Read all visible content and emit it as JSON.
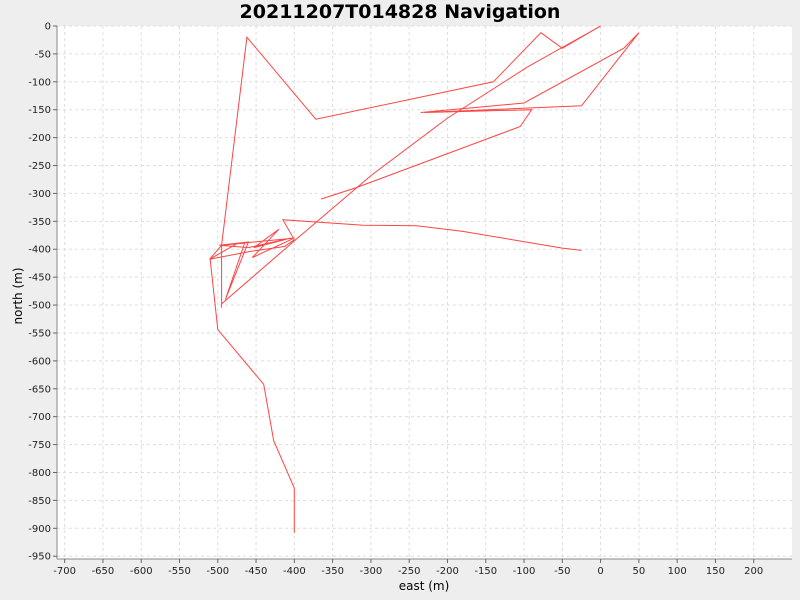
{
  "chart_data": {
    "type": "line",
    "title": "20211207T014828 Navigation",
    "xlabel": "east (m)",
    "ylabel": "north (m)",
    "xlim": [
      -710,
      250
    ],
    "ylim": [
      -955,
      0
    ],
    "xticks": [
      -700,
      -650,
      -600,
      -550,
      -500,
      -450,
      -400,
      -350,
      -300,
      -250,
      -200,
      -150,
      -100,
      -50,
      0,
      50,
      100,
      150,
      200
    ],
    "yticks": [
      0,
      -50,
      -100,
      -150,
      -200,
      -250,
      -300,
      -350,
      -400,
      -450,
      -500,
      -550,
      -600,
      -650,
      -700,
      -750,
      -800,
      -850,
      -900,
      -950
    ],
    "grid": true,
    "colors": {
      "series": "#ff4444",
      "grid": "#dddddd",
      "plot_bg": "#ffffff",
      "page_bg": "#eeeeee"
    },
    "series": [
      {
        "points": [
          [
            -400,
            -908
          ],
          [
            -400,
            -828
          ],
          [
            -427,
            -743
          ],
          [
            -440,
            -642
          ],
          [
            -500,
            -544
          ],
          [
            -510,
            -417
          ],
          [
            -495,
            -393
          ],
          [
            -465,
            -389
          ],
          [
            -490,
            -490
          ],
          [
            -460,
            -387
          ],
          [
            -498,
            -393
          ],
          [
            -460,
            -397
          ],
          [
            -405,
            -380
          ],
          [
            -453,
            -397
          ],
          [
            -420,
            -364
          ],
          [
            -455,
            -415
          ],
          [
            -400,
            -380
          ],
          [
            -475,
            -390
          ],
          [
            -511,
            -418
          ],
          [
            -458,
            -404
          ],
          [
            -413,
            -395
          ],
          [
            -400,
            -383
          ],
          [
            -415,
            -347
          ],
          [
            -310,
            -357
          ],
          [
            -240,
            -358
          ],
          [
            -180,
            -368
          ],
          [
            -50,
            -398
          ],
          [
            -25,
            -402
          ]
        ]
      },
      {
        "points": [
          [
            -400,
            -385
          ],
          [
            -495,
            -498
          ],
          [
            -400,
            -385
          ],
          [
            -300,
            -268
          ],
          [
            -200,
            -165
          ],
          [
            -95,
            -73
          ],
          [
            0,
            0
          ]
        ]
      },
      {
        "points": [
          [
            0,
            0
          ],
          [
            -50,
            -40
          ],
          [
            -78,
            -12
          ],
          [
            -140,
            -100
          ],
          [
            -372,
            -167
          ],
          [
            -462,
            -20
          ],
          [
            -495,
            -393
          ],
          [
            -495,
            -505
          ]
        ]
      },
      {
        "points": [
          [
            -365,
            -310
          ],
          [
            -320,
            -290
          ],
          [
            -105,
            -180
          ],
          [
            -90,
            -150
          ],
          [
            -230,
            -155
          ],
          [
            -25,
            -143
          ],
          [
            50,
            -12
          ],
          [
            30,
            -40
          ],
          [
            -100,
            -138
          ],
          [
            -235,
            -155
          ]
        ]
      }
    ]
  }
}
